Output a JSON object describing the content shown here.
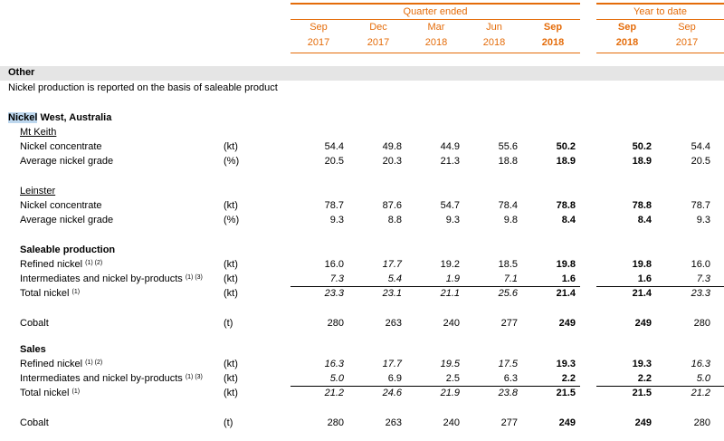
{
  "header": {
    "quarter_group": "Quarter ended",
    "ytd_group": "Year to date",
    "quarter_cols": [
      {
        "month": "Sep",
        "year": "2017",
        "bold": false
      },
      {
        "month": "Dec",
        "year": "2017",
        "bold": false
      },
      {
        "month": "Mar",
        "year": "2018",
        "bold": false
      },
      {
        "month": "Jun",
        "year": "2018",
        "bold": false
      },
      {
        "month": "Sep",
        "year": "2018",
        "bold": true
      }
    ],
    "ytd_cols": [
      {
        "month": "Sep",
        "year": "2018",
        "bold": true
      },
      {
        "month": "Sep",
        "year": "2017",
        "bold": false
      }
    ]
  },
  "section": {
    "title": "Other",
    "note": "Nickel production is reported on the basis of saleable product"
  },
  "group_title": {
    "highlight": "Nickel",
    "rest": " West, Australia"
  },
  "rows": [
    {
      "type": "subhead",
      "label": "Mt Keith"
    },
    {
      "type": "data",
      "label": "Nickel concentrate",
      "unit": "(kt)",
      "values": [
        "54.4",
        "49.8",
        "44.9",
        "55.6",
        "50.2",
        "50.2",
        "54.4"
      ]
    },
    {
      "type": "data",
      "label": "Average nickel grade",
      "unit": "(%)",
      "values": [
        "20.5",
        "20.3",
        "21.3",
        "18.8",
        "18.9",
        "18.9",
        "20.5"
      ]
    },
    {
      "type": "subhead",
      "label": "Leinster"
    },
    {
      "type": "data",
      "label": "Nickel concentrate",
      "unit": "(kt)",
      "values": [
        "78.7",
        "87.6",
        "54.7",
        "78.4",
        "78.8",
        "78.8",
        "78.7"
      ]
    },
    {
      "type": "data",
      "label": "Average nickel grade",
      "unit": "(%)",
      "values": [
        "9.3",
        "8.8",
        "9.3",
        "9.8",
        "8.4",
        "8.4",
        "9.3"
      ]
    },
    {
      "type": "boldhead",
      "label": "Saleable production"
    },
    {
      "type": "data",
      "label": "Refined nickel",
      "sup": "(1) (2)",
      "unit": "(kt)",
      "values": [
        "16.0",
        "17.7",
        "19.2",
        "18.5",
        "19.8",
        "19.8",
        "16.0"
      ],
      "italic": [
        1
      ]
    },
    {
      "type": "data",
      "label": "Intermediates and nickel by-products",
      "sup": "(1) (3)",
      "unit": "(kt)",
      "values": [
        "7.3",
        "5.4",
        "1.9",
        "7.1",
        "1.6",
        "1.6",
        "7.3"
      ],
      "italic": [
        0,
        1,
        2,
        3,
        6
      ],
      "underline": true
    },
    {
      "type": "data",
      "label": "Total nickel",
      "sup": "(1)",
      "unit": "(kt)",
      "values": [
        "23.3",
        "23.1",
        "21.1",
        "25.6",
        "21.4",
        "21.4",
        "23.3"
      ],
      "italic": [
        0,
        1,
        2,
        3,
        6
      ]
    },
    {
      "type": "data",
      "label": "Cobalt",
      "unit": "(t)",
      "values": [
        "280",
        "263",
        "240",
        "277",
        "249",
        "249",
        "280"
      ]
    },
    {
      "type": "boldhead",
      "label": "Sales"
    },
    {
      "type": "data",
      "label": "Refined nickel",
      "sup": "(1) (2)",
      "unit": "(kt)",
      "values": [
        "16.3",
        "17.7",
        "19.5",
        "17.5",
        "19.3",
        "19.3",
        "16.3"
      ],
      "italic": [
        0,
        1,
        2,
        3,
        6
      ]
    },
    {
      "type": "data",
      "label": "Intermediates and nickel by-products",
      "sup": "(1) (3)",
      "unit": "(kt)",
      "values": [
        "5.0",
        "6.9",
        "2.5",
        "6.3",
        "2.2",
        "2.2",
        "5.0"
      ],
      "italic": [
        0,
        6
      ],
      "underline": true
    },
    {
      "type": "data",
      "label": "Total nickel",
      "sup": "(1)",
      "unit": "(kt)",
      "values": [
        "21.2",
        "24.6",
        "21.9",
        "23.8",
        "21.5",
        "21.5",
        "21.2"
      ],
      "italic": [
        0,
        1,
        2,
        3,
        6
      ]
    },
    {
      "type": "data",
      "label": "Cobalt",
      "unit": "(t)",
      "values": [
        "280",
        "263",
        "240",
        "277",
        "249",
        "249",
        "280"
      ]
    }
  ],
  "colors": {
    "accent": "#e46c0a",
    "band": "#e5e5e5",
    "highlight": "#bdd7ee"
  }
}
